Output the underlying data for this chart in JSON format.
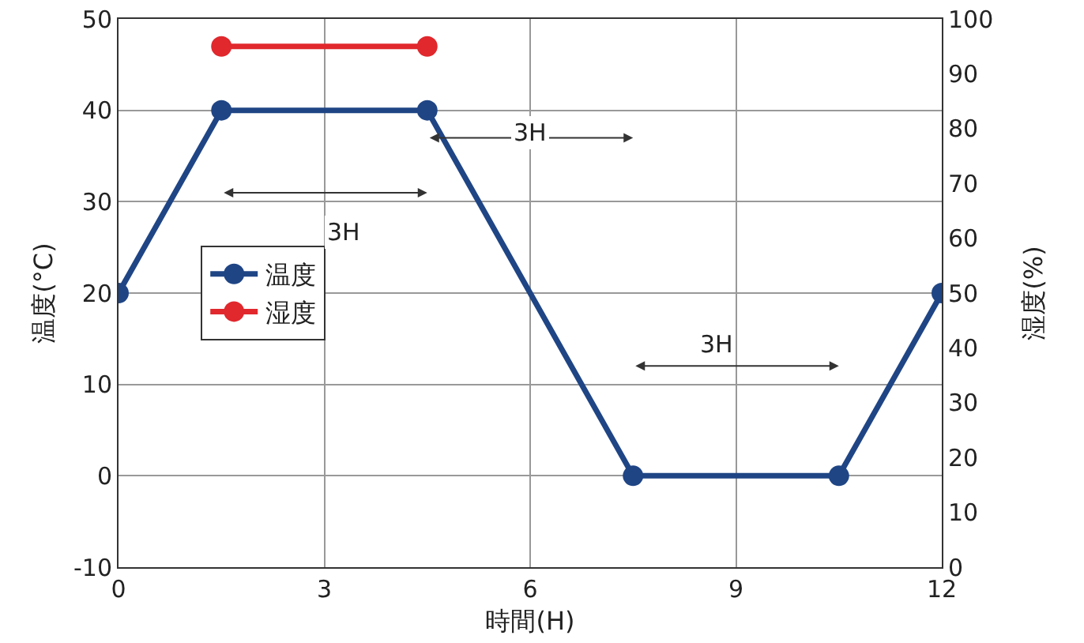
{
  "chart_data": {
    "type": "line",
    "xlabel": "時間(H)",
    "ylabel": "温度(°C)",
    "y2label": "湿度(%)",
    "xlim": [
      0,
      12
    ],
    "xticks": [
      0,
      3,
      6,
      9,
      12
    ],
    "ylim": [
      -10,
      50
    ],
    "yticks": [
      -10,
      0,
      10,
      20,
      30,
      40,
      50
    ],
    "y2lim": [
      0,
      100
    ],
    "y2ticks": [
      0,
      10,
      20,
      30,
      40,
      50,
      60,
      70,
      80,
      90,
      100
    ],
    "grid": true,
    "legend": "left",
    "marker": "circle",
    "line_style": "solid",
    "series": [
      {
        "name": "温度",
        "color": "#1f4585",
        "x": [
          0,
          1.5,
          4.5,
          7.5,
          10.5,
          12
        ],
        "values": [
          20,
          40,
          40,
          0,
          0,
          20
        ]
      },
      {
        "name": "湿度",
        "color": "#e0282d",
        "axis": "y2",
        "x": [
          1.5,
          4.5
        ],
        "values": [
          95,
          95
        ]
      }
    ],
    "annotations": [
      "3H",
      "3H",
      "3H"
    ]
  }
}
